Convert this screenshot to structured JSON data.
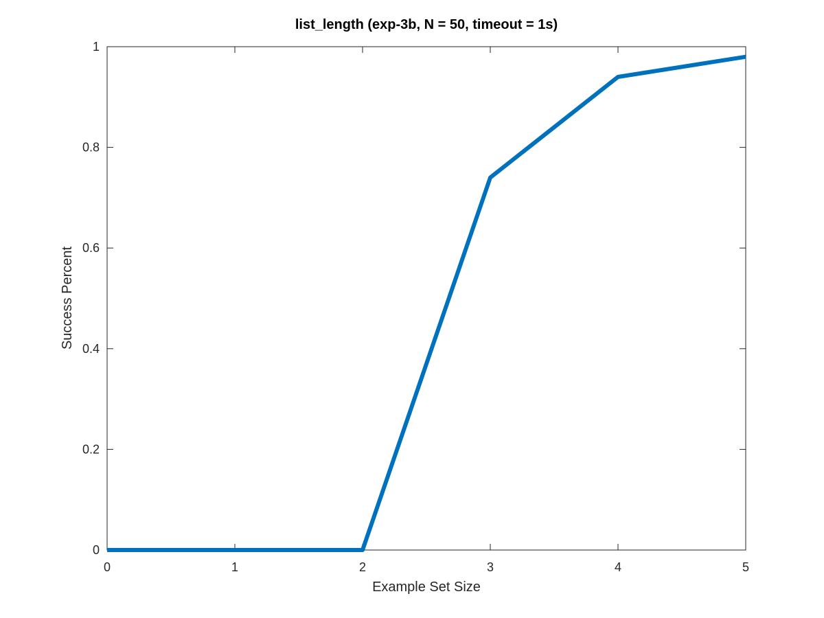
{
  "chart_data": {
    "type": "line",
    "title": "list_length (exp-3b, N = 50, timeout = 1s)",
    "xlabel": "Example Set Size",
    "ylabel": "Success Percent",
    "xlim": [
      0,
      5
    ],
    "ylim": [
      0,
      1
    ],
    "xticks": [
      0,
      1,
      2,
      3,
      4,
      5
    ],
    "xtick_labels": [
      "0",
      "1",
      "2",
      "3",
      "4",
      "5"
    ],
    "yticks": [
      0,
      0.2,
      0.4,
      0.6,
      0.8,
      1
    ],
    "ytick_labels": [
      "0",
      "0.2",
      "0.4",
      "0.6",
      "0.8",
      "1"
    ],
    "grid": false,
    "series": [
      {
        "color": "#0072BD",
        "x": [
          0,
          1,
          2,
          3,
          4,
          5
        ],
        "y": [
          0,
          0,
          0,
          0.74,
          0.94,
          0.98
        ]
      }
    ]
  }
}
